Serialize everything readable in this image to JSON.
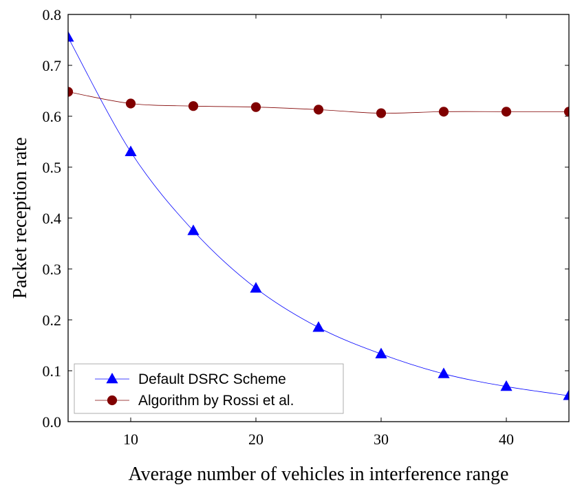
{
  "chart_data": {
    "type": "line",
    "title": "",
    "xlabel": "Average number of vehicles in interference range",
    "ylabel": "Packet reception rate",
    "xlim": [
      5,
      45
    ],
    "ylim": [
      0,
      0.8
    ],
    "xticks": [
      10,
      20,
      30,
      40
    ],
    "xtick_labels": [
      "10",
      "20",
      "30",
      "40"
    ],
    "yticks": [
      0,
      0.1,
      0.2,
      0.3,
      0.4,
      0.5,
      0.6,
      0.7,
      0.8
    ],
    "ytick_labels": [
      "0.0",
      "0.1",
      "0.2",
      "0.3",
      "0.4",
      "0.5",
      "0.6",
      "0.7",
      "0.8"
    ],
    "grid": false,
    "legend_position": "bottom-left",
    "x": [
      5,
      10,
      15,
      20,
      25,
      30,
      35,
      40,
      45
    ],
    "series": [
      {
        "name": "Default DSRC Scheme",
        "marker": "triangle",
        "color": "#0000ff",
        "values": [
          0.755,
          0.53,
          0.375,
          0.262,
          0.185,
          0.133,
          0.094,
          0.069,
          0.051
        ]
      },
      {
        "name": "Algorithm by Rossi et al.",
        "marker": "circle",
        "color": "#800000",
        "values": [
          0.648,
          0.625,
          0.62,
          0.618,
          0.613,
          0.606,
          0.609,
          0.609,
          0.609
        ]
      }
    ]
  }
}
